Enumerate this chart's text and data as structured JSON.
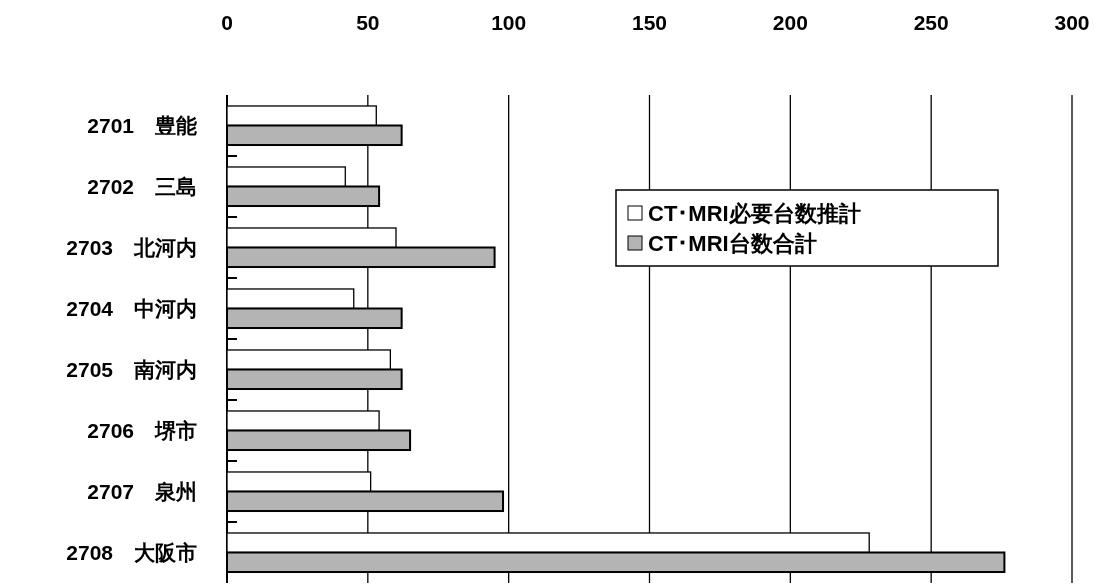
{
  "chart_data": {
    "type": "bar",
    "orientation": "horizontal",
    "categories": [
      "2701　豊能",
      "2702　三島",
      "2703　北河内",
      "2704　中河内",
      "2705　南河内",
      "2706　堺市",
      "2707　泉州",
      "2708　大阪市"
    ],
    "series": [
      {
        "name": "CT･MRI必要台数推計",
        "color": "#ffffff",
        "values": [
          53,
          42,
          60,
          45,
          58,
          54,
          51,
          228
        ]
      },
      {
        "name": "CT･MRI台数合計",
        "color": "#b4b4b4",
        "values": [
          62,
          54,
          95,
          62,
          62,
          65,
          98,
          276
        ]
      }
    ],
    "xlim": [
      0,
      300
    ],
    "xticks": [
      0,
      50,
      100,
      150,
      200,
      250,
      300
    ],
    "grid": "x",
    "legend": "right"
  }
}
